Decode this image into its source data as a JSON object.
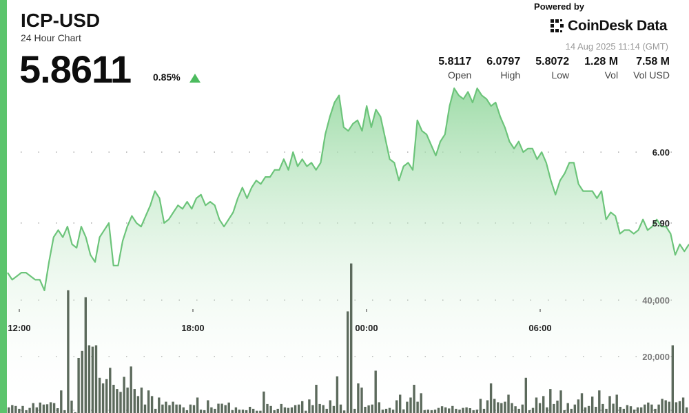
{
  "header": {
    "ticker": "ICP-USD",
    "subtitle": "24 Hour Chart",
    "price": "5.8611",
    "change": "0.85%",
    "change_direction": "up"
  },
  "branding": {
    "powered_by": "Powered by",
    "name": "CoinDesk Data",
    "icon": "coindesk-logo-icon"
  },
  "timestamp": "14 Aug 2025 11:14 (GMT)",
  "stats": [
    {
      "value": "5.8117",
      "label": "Open"
    },
    {
      "value": "6.0797",
      "label": "High"
    },
    {
      "value": "5.8072",
      "label": "Low"
    },
    {
      "value": "1.28 M",
      "label": "Vol"
    },
    {
      "value": "7.58 M",
      "label": "Vol USD"
    }
  ],
  "colors": {
    "accent": "#5cc46d",
    "line": "#6cc47a",
    "volume_bar": "#5c6a5c"
  },
  "chart_data": {
    "type": "area",
    "x_tick_labels": [
      "12:00",
      "18:00",
      "00:00",
      "06:00"
    ],
    "price_axis": {
      "ticks": [
        5.9,
        6.0
      ],
      "tick_labels": [
        "5.90",
        "6.00"
      ]
    },
    "volume_axis": {
      "ticks": [
        20000,
        40000
      ],
      "tick_labels": [
        "20,000",
        "40,000"
      ]
    },
    "grid": "dotted horizontal",
    "price_series": [
      5.83,
      5.82,
      5.825,
      5.83,
      5.83,
      5.825,
      5.82,
      5.82,
      5.805,
      5.845,
      5.88,
      5.89,
      5.88,
      5.895,
      5.87,
      5.865,
      5.895,
      5.88,
      5.855,
      5.845,
      5.88,
      5.89,
      5.9,
      5.84,
      5.84,
      5.875,
      5.895,
      5.91,
      5.9,
      5.895,
      5.91,
      5.925,
      5.945,
      5.935,
      5.9,
      5.905,
      5.915,
      5.925,
      5.92,
      5.93,
      5.92,
      5.935,
      5.94,
      5.925,
      5.93,
      5.925,
      5.905,
      5.895,
      5.905,
      5.915,
      5.935,
      5.95,
      5.935,
      5.95,
      5.96,
      5.955,
      5.965,
      5.965,
      5.975,
      5.975,
      5.99,
      5.975,
      6.0,
      5.98,
      5.99,
      5.98,
      5.985,
      5.975,
      5.985,
      6.025,
      6.05,
      6.07,
      6.08,
      6.035,
      6.03,
      6.04,
      6.045,
      6.03,
      6.065,
      6.035,
      6.06,
      6.05,
      6.02,
      5.99,
      5.985,
      5.96,
      5.98,
      5.985,
      5.975,
      6.045,
      6.03,
      6.025,
      6.01,
      5.995,
      6.015,
      6.025,
      6.065,
      6.09,
      6.08,
      6.075,
      6.085,
      6.07,
      6.09,
      6.08,
      6.075,
      6.065,
      6.07,
      6.05,
      6.035,
      6.015,
      6.005,
      6.015,
      6.0,
      6.005,
      6.005,
      5.99,
      6.0,
      5.985,
      5.96,
      5.94,
      5.96,
      5.97,
      5.985,
      5.985,
      5.955,
      5.945,
      5.945,
      5.945,
      5.935,
      5.945,
      5.905,
      5.915,
      5.91,
      5.885,
      5.89,
      5.89,
      5.885,
      5.89,
      5.905,
      5.89,
      5.895,
      5.905,
      5.895,
      5.895,
      5.885,
      5.855,
      5.87,
      5.86,
      5.87
    ],
    "volume_series": [
      2000,
      2800,
      2500,
      1500,
      2500,
      1000,
      1800,
      3500,
      2000,
      3700,
      3000,
      3100,
      3800,
      3500,
      1700,
      8000,
      1000,
      43500,
      4400,
      300,
      19500,
      22000,
      41000,
      24000,
      23500,
      24000,
      12500,
      10500,
      12000,
      16000,
      10000,
      8500,
      7500,
      12800,
      9000,
      16500,
      8500,
      6000,
      9000,
      3000,
      8000,
      6000,
      1500,
      5500,
      3000,
      4000,
      2800,
      4000,
      3000,
      3000,
      2000,
      1000,
      3000,
      2800,
      5500,
      1200,
      1000,
      4500,
      2000,
      1500,
      3300,
      3300,
      2800,
      3700,
      1000,
      2000,
      1200,
      1200,
      1000,
      2200,
      1500,
      800,
      800,
      7600,
      3200,
      2500,
      1000,
      1500,
      3200,
      2000,
      1800,
      2000,
      2800,
      3000,
      4200,
      800,
      4800,
      2800,
      10000,
      3200,
      2800,
      1500,
      4500,
      2500,
      13000,
      3000,
      900,
      36000,
      53000,
      1500,
      10500,
      9000,
      2200,
      2700,
      3000,
      15000,
      3800,
      1200,
      1500,
      1800,
      1200,
      4500,
      6500,
      1300,
      4000,
      5500,
      10000,
      4000,
      7000,
      1000,
      1200,
      1000,
      1200,
      1800,
      2400,
      2000,
      1600,
      2500,
      1500,
      1200,
      1800,
      2000,
      1700,
      1000,
      1200,
      5000,
      1500,
      4500,
      10500,
      5000,
      3800,
      3500,
      4000,
      6500,
      3500,
      2400,
      1500,
      3000,
      12500,
      1000,
      1800,
      5500,
      3500,
      6000,
      2000,
      8500,
      3200,
      4400,
      8000,
      1000,
      3500,
      1500,
      3000,
      4800,
      7000,
      2000,
      2500,
      5800,
      2200,
      8000,
      3200,
      1500,
      6000,
      3300,
      6500,
      2200,
      1500,
      2800,
      2400,
      1200,
      2000,
      2000,
      3000,
      3700,
      3000,
      1500,
      3000,
      5000,
      4500,
      4000,
      24000,
      3800,
      4200,
      5500,
      2000
    ]
  }
}
